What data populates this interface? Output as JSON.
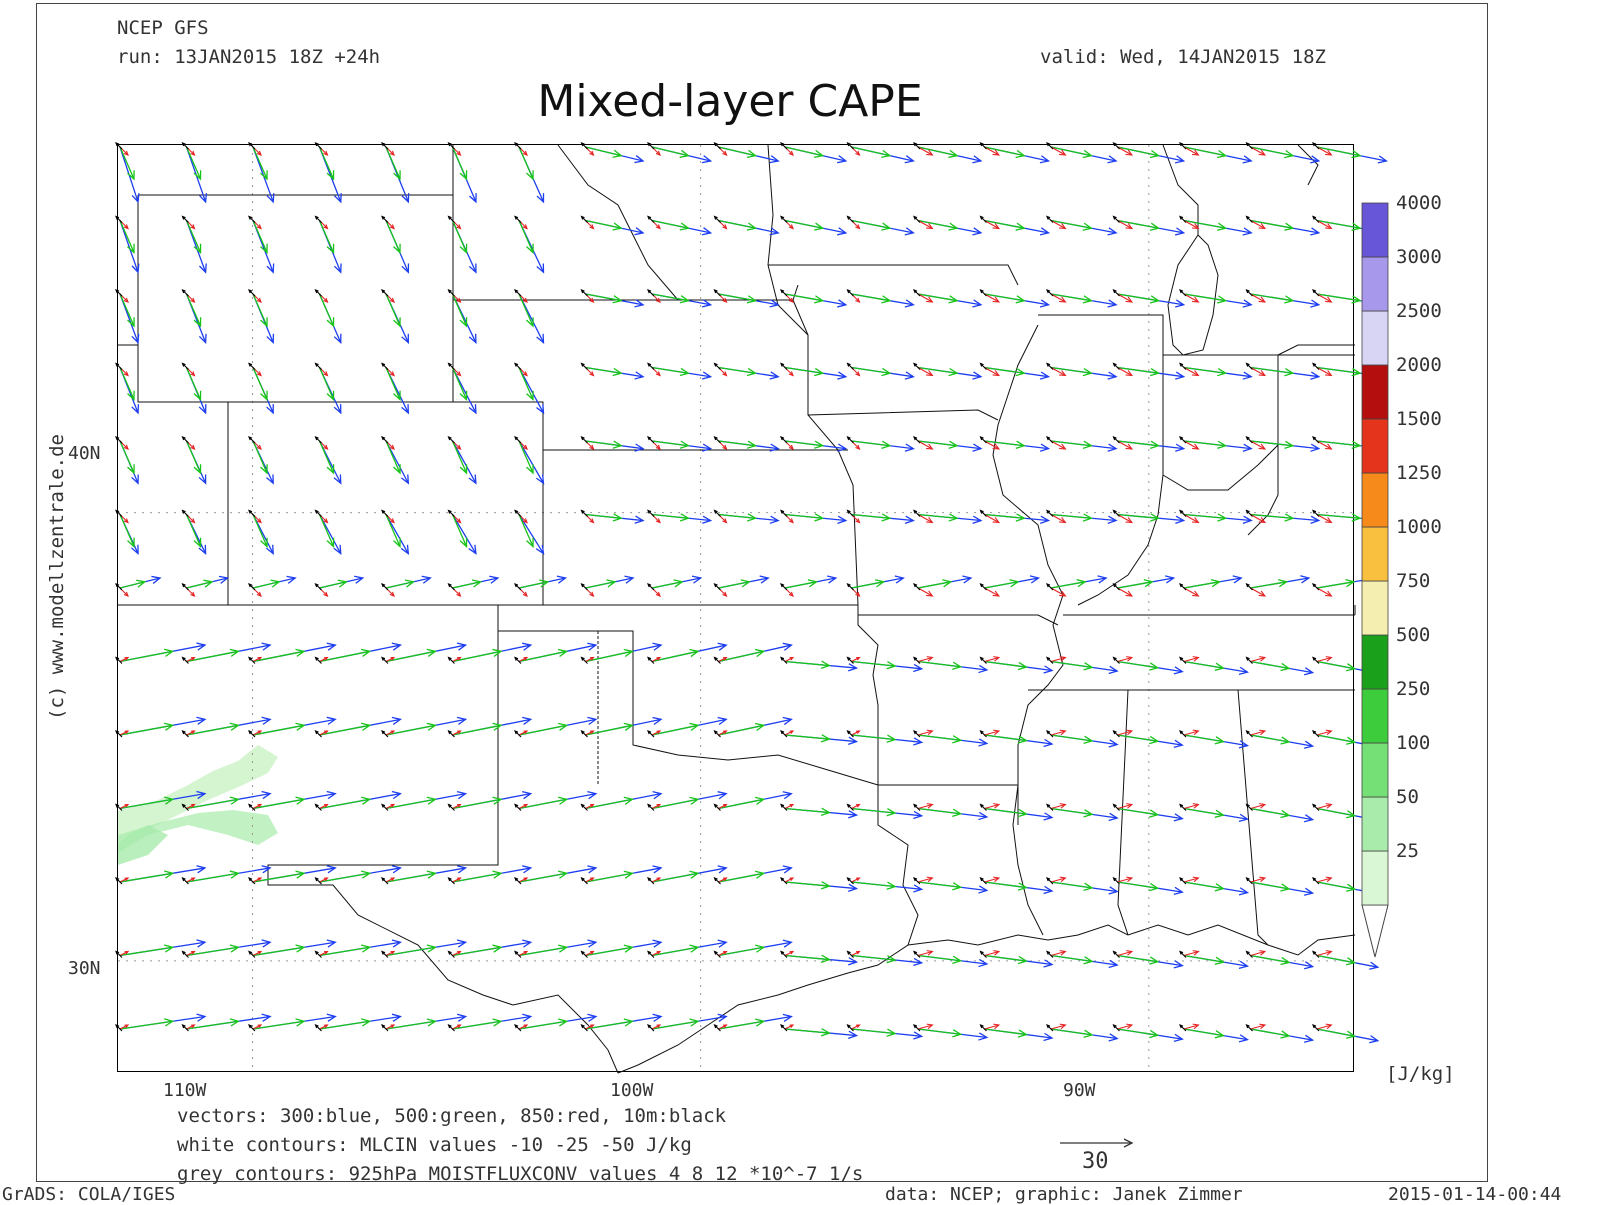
{
  "header": {
    "model": "NCEP GFS",
    "run": "run: 13JAN2015 18Z +24h",
    "valid": "valid: Wed, 14JAN2015 18Z",
    "title": "Mixed-layer CAPE"
  },
  "axes": {
    "lat_labels": [
      "40N",
      "30N"
    ],
    "lon_labels": [
      "110W",
      "100W",
      "90W"
    ]
  },
  "legend": {
    "unit": "[J/kg]",
    "levels": [
      "25",
      "50",
      "100",
      "250",
      "500",
      "750",
      "1000",
      "1250",
      "1500",
      "2000",
      "2500",
      "3000",
      "4000"
    ],
    "colors": [
      "#d9f7d4",
      "#a8ebab",
      "#75e075",
      "#3ccc3c",
      "#1aa01a",
      "#f4eeb0",
      "#f9c040",
      "#f68a1a",
      "#e4341b",
      "#b50e0e",
      "#d8d4f4",
      "#a898ec",
      "#6856d8",
      "#3e2fb0"
    ]
  },
  "notes": {
    "vectors": "vectors: 300:blue, 500:green, 850:red, 10m:black",
    "white_contours": "white contours: MLCIN values -10 -25 -50 J/kg",
    "grey_contours": "grey contours: 925hPa MOISTFLUXCONV values 4 8 12 *10^-7 1/s",
    "ref_vector": "30"
  },
  "watermark": "(c) www.modellzentrale.de",
  "footer": {
    "left": "GrADS: COLA/IGES",
    "center": "data: NCEP; graphic: Janek Zimmer",
    "right": "2015-01-14-00:44"
  },
  "vector_colors": {
    "blue": "#1d3ef0",
    "green": "#19c419",
    "red": "#e52222",
    "black": "#000000"
  }
}
